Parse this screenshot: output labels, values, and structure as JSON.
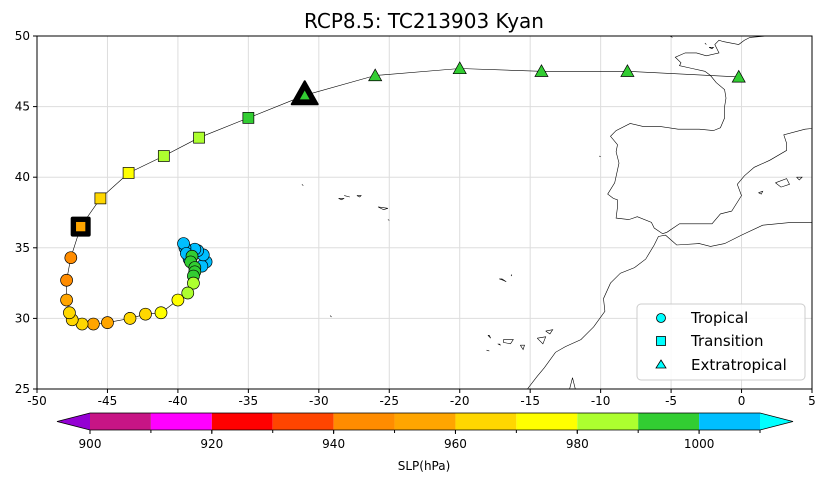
{
  "title": "RCP8.5: TC213903 Kyan",
  "map": {
    "x_ticks": [
      "-50",
      "-45",
      "-40",
      "-35",
      "-30",
      "-25",
      "-20",
      "-15",
      "-10",
      "-5",
      "0",
      "5"
    ],
    "y_ticks": [
      "25",
      "30",
      "35",
      "40",
      "45",
      "50"
    ],
    "xlim": [
      -50,
      5
    ],
    "ylim": [
      25,
      50
    ],
    "grid": true
  },
  "legend": {
    "position": "lower-right",
    "items": [
      {
        "label": "Tropical",
        "marker": "circle",
        "color": "#00ffff"
      },
      {
        "label": "Transition",
        "marker": "square",
        "color": "#00ffff"
      },
      {
        "label": "Extratropical",
        "marker": "triangle",
        "color": "#00ffff"
      }
    ]
  },
  "colorbar": {
    "label": "SLP(hPa)",
    "tick_labels": [
      "900",
      "920",
      "940",
      "960",
      "980",
      "1000"
    ],
    "ticks": [
      900,
      920,
      940,
      960,
      980,
      1000
    ],
    "bounds": [
      900,
      910,
      920,
      930,
      940,
      950,
      960,
      970,
      980,
      990,
      1000,
      1010
    ],
    "under_color": "#9400d3",
    "over_color": "#00ffff",
    "colors": [
      "#c71585",
      "#ff00ff",
      "#ff0000",
      "#ff4500",
      "#ff8c00",
      "#ffa500",
      "#ffd700",
      "#ffff00",
      "#adff2f",
      "#32cd32",
      "#00bfff"
    ]
  },
  "chart_data": {
    "type": "scatter",
    "x_name": "longitude",
    "y_name": "latitude",
    "value_name": "SLP(hPa)",
    "track": [
      {
        "lon": -38.0,
        "lat": 34.0,
        "slp": 1005,
        "stage": "tropical"
      },
      {
        "lon": -38.3,
        "lat": 33.7,
        "slp": 1005,
        "stage": "tropical"
      },
      {
        "lon": -38.2,
        "lat": 34.5,
        "slp": 1005,
        "stage": "tropical"
      },
      {
        "lon": -38.6,
        "lat": 34.8,
        "slp": 1005,
        "stage": "tropical"
      },
      {
        "lon": -38.8,
        "lat": 34.9,
        "slp": 1005,
        "stage": "tropical"
      },
      {
        "lon": -39.2,
        "lat": 34.2,
        "slp": 1005,
        "stage": "tropical"
      },
      {
        "lon": -39.5,
        "lat": 35.0,
        "slp": 1005,
        "stage": "tropical"
      },
      {
        "lon": -39.6,
        "lat": 35.3,
        "slp": 1005,
        "stage": "tropical"
      },
      {
        "lon": -39.4,
        "lat": 34.6,
        "slp": 1003,
        "stage": "tropical"
      },
      {
        "lon": -39.0,
        "lat": 34.4,
        "slp": 995,
        "stage": "tropical"
      },
      {
        "lon": -39.1,
        "lat": 34.0,
        "slp": 995,
        "stage": "tropical"
      },
      {
        "lon": -38.8,
        "lat": 33.6,
        "slp": 995,
        "stage": "tropical"
      },
      {
        "lon": -38.8,
        "lat": 33.3,
        "slp": 995,
        "stage": "tropical"
      },
      {
        "lon": -38.9,
        "lat": 33.0,
        "slp": 995,
        "stage": "tropical"
      },
      {
        "lon": -38.9,
        "lat": 32.5,
        "slp": 985,
        "stage": "tropical"
      },
      {
        "lon": -39.3,
        "lat": 31.8,
        "slp": 985,
        "stage": "tropical"
      },
      {
        "lon": -40.0,
        "lat": 31.3,
        "slp": 975,
        "stage": "tropical"
      },
      {
        "lon": -41.2,
        "lat": 30.4,
        "slp": 975,
        "stage": "tropical"
      },
      {
        "lon": -42.3,
        "lat": 30.3,
        "slp": 965,
        "stage": "tropical"
      },
      {
        "lon": -43.4,
        "lat": 30.0,
        "slp": 965,
        "stage": "tropical"
      },
      {
        "lon": -45.0,
        "lat": 29.7,
        "slp": 955,
        "stage": "tropical"
      },
      {
        "lon": -46.0,
        "lat": 29.6,
        "slp": 955,
        "stage": "tropical"
      },
      {
        "lon": -46.8,
        "lat": 29.6,
        "slp": 965,
        "stage": "tropical"
      },
      {
        "lon": -47.5,
        "lat": 29.9,
        "slp": 965,
        "stage": "tropical"
      },
      {
        "lon": -47.7,
        "lat": 30.4,
        "slp": 965,
        "stage": "tropical"
      },
      {
        "lon": -47.9,
        "lat": 31.3,
        "slp": 955,
        "stage": "tropical"
      },
      {
        "lon": -47.9,
        "lat": 32.7,
        "slp": 945,
        "stage": "tropical"
      },
      {
        "lon": -47.6,
        "lat": 34.3,
        "slp": 945,
        "stage": "tropical"
      },
      {
        "lon": -46.9,
        "lat": 36.5,
        "slp": 955,
        "stage": "transition",
        "highlight": true
      },
      {
        "lon": -45.5,
        "lat": 38.5,
        "slp": 965,
        "stage": "transition"
      },
      {
        "lon": -43.5,
        "lat": 40.3,
        "slp": 975,
        "stage": "transition"
      },
      {
        "lon": -41.0,
        "lat": 41.5,
        "slp": 985,
        "stage": "transition"
      },
      {
        "lon": -38.5,
        "lat": 42.8,
        "slp": 985,
        "stage": "transition"
      },
      {
        "lon": -35.0,
        "lat": 44.2,
        "slp": 995,
        "stage": "transition"
      },
      {
        "lon": -31.0,
        "lat": 45.8,
        "slp": 995,
        "stage": "extratropical",
        "highlight": true
      },
      {
        "lon": -26.0,
        "lat": 47.2,
        "slp": 995,
        "stage": "extratropical"
      },
      {
        "lon": -20.0,
        "lat": 47.7,
        "slp": 995,
        "stage": "extratropical"
      },
      {
        "lon": -14.2,
        "lat": 47.5,
        "slp": 995,
        "stage": "extratropical"
      },
      {
        "lon": -8.1,
        "lat": 47.5,
        "slp": 995,
        "stage": "extratropical"
      },
      {
        "lon": -0.2,
        "lat": 47.1,
        "slp": 995,
        "stage": "extratropical"
      }
    ],
    "coastline": {
      "europe_north": [
        [
          2.0,
          51.0
        ],
        [
          1.8,
          50.0
        ],
        [
          0.6,
          49.9
        ],
        [
          0.2,
          49.7
        ],
        [
          -0.2,
          49.4
        ],
        [
          -1.3,
          49.6
        ],
        [
          -1.6,
          49.7
        ],
        [
          -1.9,
          49.4
        ],
        [
          -1.6,
          48.8
        ],
        [
          -2.5,
          48.6
        ],
        [
          -3.2,
          48.8
        ],
        [
          -4.0,
          48.8
        ],
        [
          -4.7,
          48.5
        ],
        [
          -4.3,
          48.1
        ],
        [
          -4.4,
          47.9
        ],
        [
          -3.5,
          47.7
        ],
        [
          -2.6,
          47.5
        ],
        [
          -2.2,
          47.2
        ],
        [
          -1.8,
          46.7
        ],
        [
          -1.2,
          46.2
        ],
        [
          -1.1,
          45.6
        ],
        [
          -1.2,
          45.0
        ],
        [
          -1.2,
          44.2
        ],
        [
          -1.5,
          43.5
        ],
        [
          -2.0,
          43.3
        ],
        [
          -3.0,
          43.4
        ],
        [
          -4.5,
          43.4
        ],
        [
          -5.8,
          43.6
        ],
        [
          -7.0,
          43.6
        ],
        [
          -7.9,
          43.8
        ],
        [
          -8.9,
          43.3
        ],
        [
          -9.3,
          42.9
        ],
        [
          -8.8,
          42.3
        ],
        [
          -8.9,
          41.8
        ],
        [
          -8.7,
          41.0
        ],
        [
          -9.0,
          39.6
        ],
        [
          -9.5,
          38.8
        ],
        [
          -9.1,
          38.5
        ],
        [
          -8.8,
          38.4
        ],
        [
          -8.8,
          37.9
        ],
        [
          -8.9,
          37.1
        ],
        [
          -8.0,
          37.0
        ],
        [
          -7.4,
          37.2
        ],
        [
          -6.4,
          36.8
        ],
        [
          -6.2,
          36.4
        ],
        [
          -5.6,
          36.0
        ],
        [
          -5.3,
          36.1
        ],
        [
          -4.4,
          36.7
        ],
        [
          -3.0,
          36.7
        ],
        [
          -2.1,
          36.7
        ],
        [
          -1.5,
          37.4
        ],
        [
          -0.7,
          37.6
        ],
        [
          0.0,
          38.7
        ],
        [
          -0.3,
          39.5
        ],
        [
          0.2,
          40.1
        ],
        [
          0.9,
          40.7
        ],
        [
          2.0,
          41.2
        ],
        [
          3.2,
          41.9
        ],
        [
          3.2,
          42.4
        ],
        [
          3.0,
          43.0
        ],
        [
          4.5,
          43.4
        ],
        [
          5.5,
          43.5
        ]
      ],
      "africa": [
        [
          5.5,
          36.8
        ],
        [
          3.5,
          36.8
        ],
        [
          1.5,
          36.6
        ],
        [
          0.0,
          35.9
        ],
        [
          -1.2,
          35.3
        ],
        [
          -2.2,
          35.1
        ],
        [
          -3.0,
          35.3
        ],
        [
          -4.6,
          35.2
        ],
        [
          -5.4,
          35.9
        ],
        [
          -5.9,
          35.8
        ],
        [
          -6.2,
          35.2
        ],
        [
          -6.8,
          34.2
        ],
        [
          -7.6,
          33.6
        ],
        [
          -8.6,
          33.2
        ],
        [
          -9.3,
          32.5
        ],
        [
          -9.8,
          31.4
        ],
        [
          -9.7,
          30.5
        ],
        [
          -10.5,
          29.4
        ],
        [
          -11.4,
          28.5
        ],
        [
          -12.5,
          28.0
        ],
        [
          -13.2,
          27.6
        ],
        [
          -14.0,
          26.5
        ],
        [
          -14.5,
          25.9
        ],
        [
          -15.2,
          25.0
        ]
      ],
      "coast_extra": [
        [
          -12.2,
          25.0
        ],
        [
          -12.0,
          25.8
        ],
        [
          -11.8,
          25.0
        ]
      ],
      "islands": [
        [
          [
            -17.0,
            32.8
          ],
          [
            -16.7,
            32.6
          ],
          [
            -16.9,
            32.7
          ],
          [
            -17.2,
            32.8
          ],
          [
            -17.0,
            32.8
          ]
        ],
        [
          [
            -16.3,
            33.1
          ],
          [
            -16.35,
            33.05
          ],
          [
            -16.3,
            33.0
          ]
        ],
        [
          [
            -25.8,
            37.9
          ],
          [
            -25.1,
            37.8
          ],
          [
            -25.4,
            37.7
          ],
          [
            -25.8,
            37.9
          ]
        ],
        [
          [
            -27.3,
            38.7
          ],
          [
            -27.0,
            38.7
          ],
          [
            -27.1,
            38.6
          ],
          [
            -27.3,
            38.7
          ]
        ],
        [
          [
            -28.6,
            38.5
          ],
          [
            -28.2,
            38.5
          ],
          [
            -28.4,
            38.4
          ],
          [
            -28.6,
            38.5
          ]
        ],
        [
          [
            -28.2,
            38.7
          ],
          [
            -27.8,
            38.6
          ]
        ],
        [
          [
            -31.2,
            39.5
          ],
          [
            -31.1,
            39.4
          ]
        ],
        [
          [
            -25.1,
            37.0
          ],
          [
            -25.0,
            36.95
          ]
        ],
        [
          [
            -18.0,
            28.8
          ],
          [
            -17.8,
            28.6
          ],
          [
            -17.9,
            28.8
          ],
          [
            -18.0,
            28.8
          ]
        ],
        [
          [
            -17.3,
            28.2
          ],
          [
            -17.1,
            28.1
          ],
          [
            -17.2,
            28.2
          ]
        ],
        [
          [
            -16.9,
            28.5
          ],
          [
            -16.2,
            28.5
          ],
          [
            -16.4,
            28.2
          ],
          [
            -16.9,
            28.3
          ],
          [
            -16.9,
            28.5
          ]
        ],
        [
          [
            -15.7,
            28.1
          ],
          [
            -15.4,
            28.1
          ],
          [
            -15.5,
            27.8
          ],
          [
            -15.7,
            28.1
          ]
        ],
        [
          [
            -14.5,
            28.6
          ],
          [
            -13.9,
            28.7
          ],
          [
            -14.1,
            28.2
          ],
          [
            -14.5,
            28.6
          ]
        ],
        [
          [
            -13.9,
            29.1
          ],
          [
            -13.4,
            29.2
          ],
          [
            -13.6,
            28.9
          ],
          [
            -13.9,
            29.1
          ]
        ],
        [
          [
            -18.1,
            27.75
          ],
          [
            -17.9,
            27.7
          ]
        ],
        [
          [
            -29.2,
            30.2
          ],
          [
            -29.1,
            30.1
          ]
        ],
        [
          [
            -10.1,
            41.5
          ],
          [
            -10.0,
            41.45
          ]
        ],
        [
          [
            1.2,
            38.9
          ],
          [
            1.5,
            39.0
          ],
          [
            1.4,
            38.8
          ],
          [
            1.2,
            38.9
          ]
        ],
        [
          [
            2.4,
            39.6
          ],
          [
            3.2,
            39.9
          ],
          [
            3.4,
            39.5
          ],
          [
            2.8,
            39.3
          ],
          [
            2.4,
            39.6
          ]
        ],
        [
          [
            3.9,
            40.0
          ],
          [
            4.3,
            40.0
          ],
          [
            4.1,
            39.8
          ],
          [
            3.9,
            40.0
          ]
        ],
        [
          [
            -2.3,
            49.2
          ],
          [
            -2.0,
            49.2
          ],
          [
            -2.1,
            49.1
          ],
          [
            -2.3,
            49.2
          ]
        ],
        [
          [
            -2.6,
            49.5
          ],
          [
            -2.5,
            49.4
          ]
        ],
        [
          [
            -5.1,
            50.0
          ],
          [
            -4.9,
            49.9
          ]
        ],
        [
          [
            -2.9,
            50.5
          ],
          [
            -2.7,
            50.6
          ]
        ],
        [
          [
            -3.0,
            50.0
          ],
          [
            -2.8,
            50.1
          ]
        ]
      ]
    }
  }
}
